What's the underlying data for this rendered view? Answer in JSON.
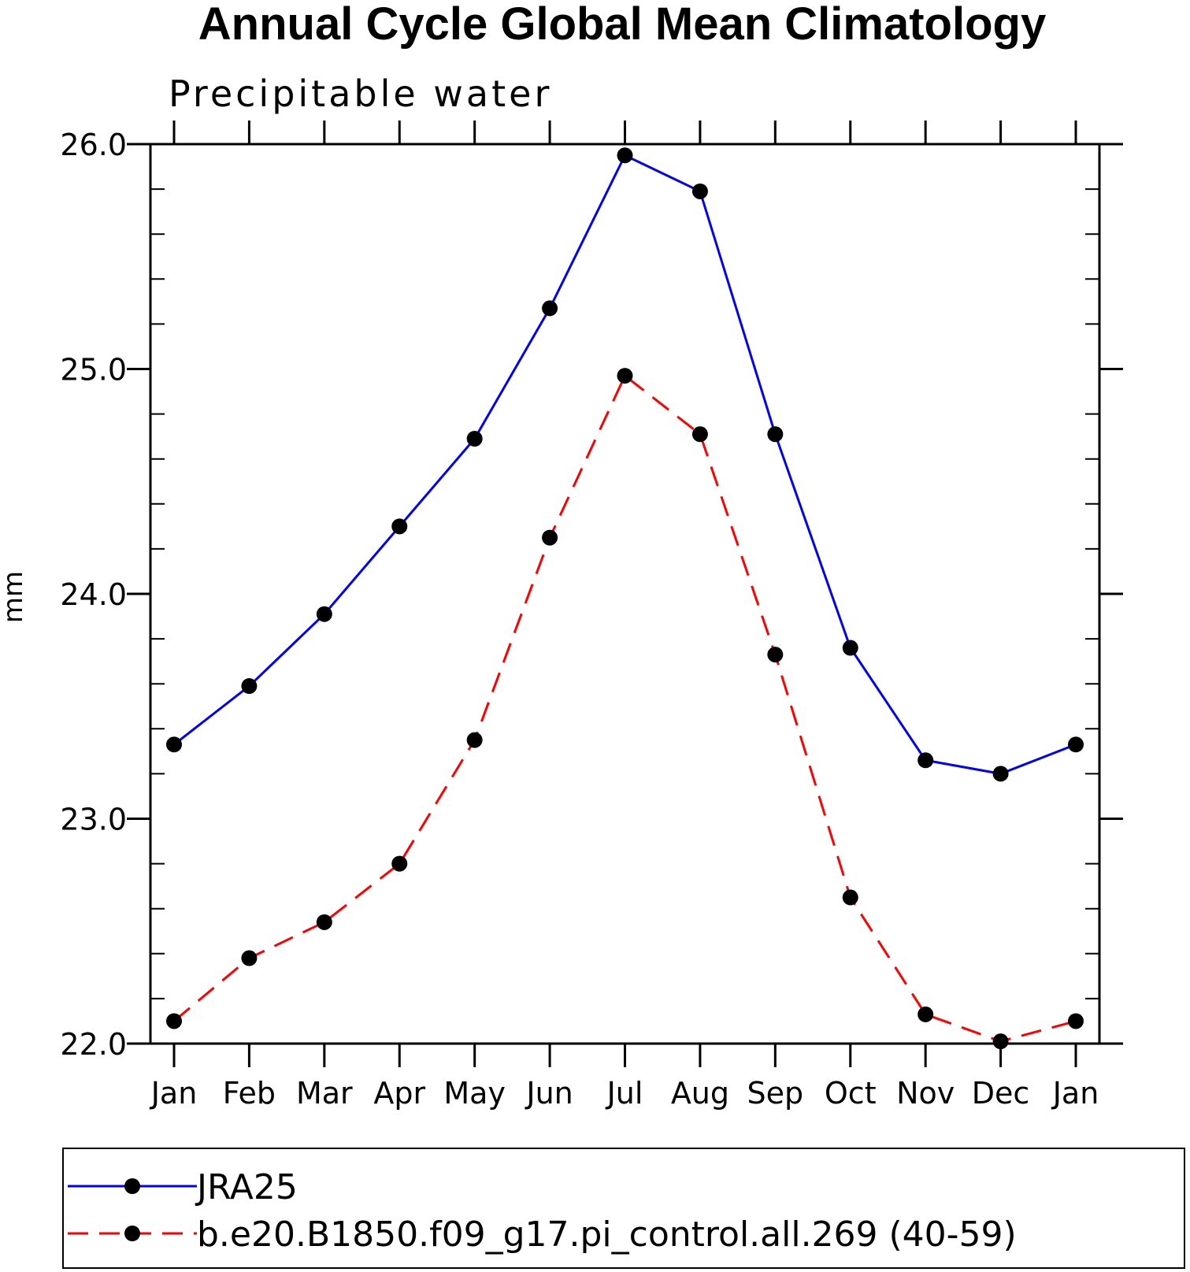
{
  "chart_data": {
    "type": "line",
    "title": "Annual Cycle Global Mean Climatology",
    "subtitle": "Precipitable water",
    "xlabel": "",
    "ylabel": "mm",
    "categories": [
      "Jan",
      "Feb",
      "Mar",
      "Apr",
      "May",
      "Jun",
      "Jul",
      "Aug",
      "Sep",
      "Oct",
      "Nov",
      "Dec",
      "Jan"
    ],
    "ylim": [
      22.0,
      26.0
    ],
    "yticks": [
      22.0,
      23.0,
      24.0,
      25.0,
      26.0
    ],
    "ytick_labels": [
      "22.0",
      "23.0",
      "24.0",
      "25.0",
      "26.0"
    ],
    "grid": false,
    "legend_position": "bottom",
    "series": [
      {
        "name": "JRA25",
        "color": "#0000ff",
        "line_style": "solid",
        "marker": "filled-circle",
        "values": [
          23.33,
          23.59,
          23.91,
          24.3,
          24.69,
          25.27,
          25.95,
          25.79,
          24.71,
          23.76,
          23.26,
          23.2,
          23.33
        ]
      },
      {
        "name": "b.e20.B1850.f09_g17.pi_control.all.269 (40-59)",
        "color": "#ff0000",
        "line_style": "dashed",
        "marker": "filled-circle",
        "values": [
          22.1,
          22.38,
          22.54,
          22.8,
          23.35,
          24.25,
          24.97,
          24.71,
          23.73,
          22.65,
          22.13,
          22.01,
          22.1
        ]
      }
    ]
  }
}
